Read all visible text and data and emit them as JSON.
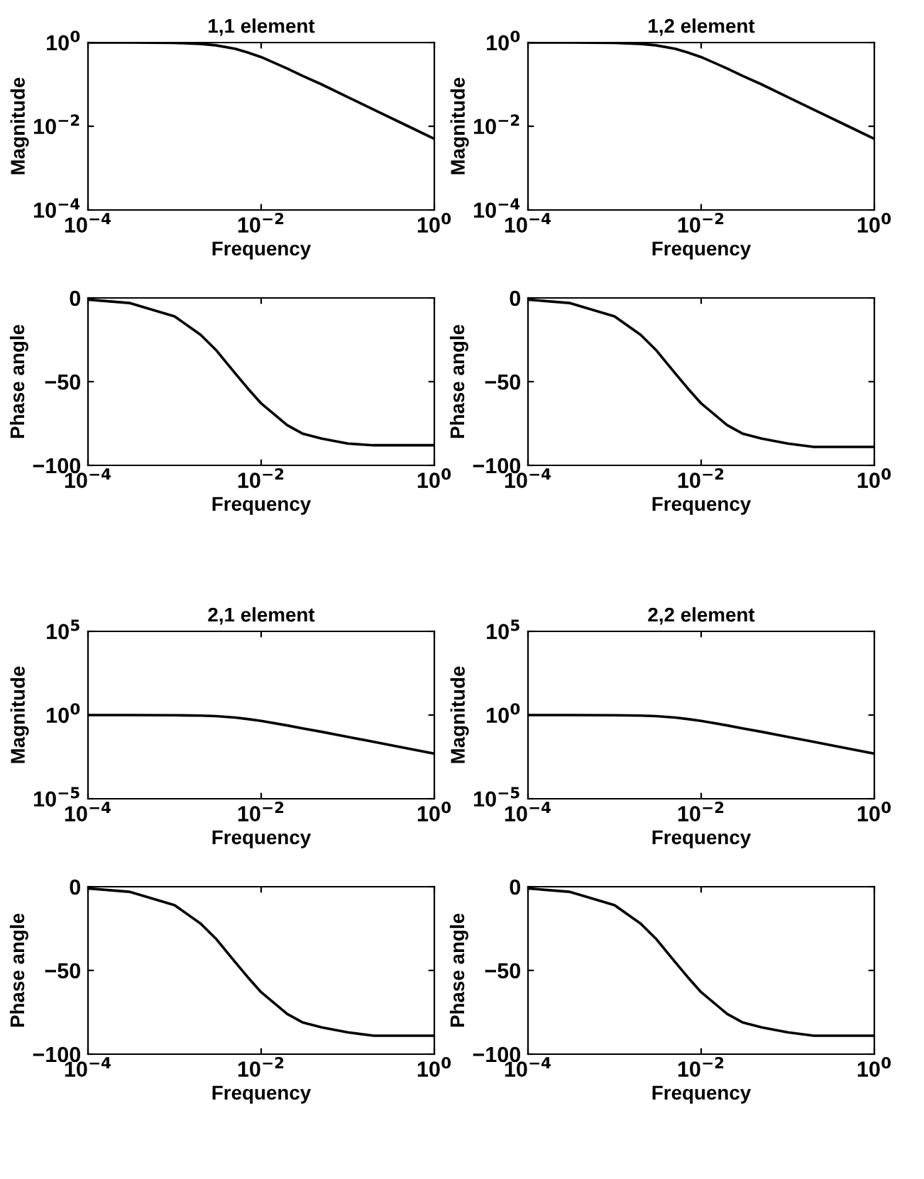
{
  "chart_data": [
    {
      "type": "line",
      "title": "1,1 element",
      "xlabel": "Frequency",
      "ylabel": "Magnitude",
      "log": "xy",
      "x": [
        0.0001,
        0.0003,
        0.001,
        0.002,
        0.003,
        0.005,
        0.007,
        0.01,
        0.02,
        0.03,
        0.05,
        0.1,
        0.2,
        0.5,
        1
      ],
      "series": [
        {
          "color": "#000000",
          "values": [
            1.0,
            1.0,
            0.98,
            0.93,
            0.86,
            0.71,
            0.58,
            0.45,
            0.24,
            0.16,
            0.1,
            0.05,
            0.025,
            0.01,
            0.005
          ]
        }
      ],
      "xlim": [
        0.0001,
        1
      ],
      "xticks": [
        {
          "value": 0.0001,
          "label": "10$^{−4}$"
        },
        {
          "value": 0.01,
          "label": "10$^{−2}$"
        },
        {
          "value": 1,
          "label": "10$^{0}$"
        }
      ],
      "ylim": [
        0.0001,
        1
      ],
      "yticks": [
        {
          "value": 0.0001,
          "label": "10$^{−4}$"
        },
        {
          "value": 0.01,
          "label": "10$^{−2}$"
        },
        {
          "value": 1,
          "label": "10$^{0}$"
        }
      ]
    },
    {
      "type": "line",
      "title": "1,2 element",
      "xlabel": "Frequency",
      "ylabel": "Magnitude",
      "log": "xy",
      "x": [
        0.0001,
        0.0003,
        0.001,
        0.002,
        0.003,
        0.005,
        0.007,
        0.01,
        0.02,
        0.03,
        0.05,
        0.1,
        0.2,
        0.5,
        1
      ],
      "series": [
        {
          "color": "#000000",
          "values": [
            1.0,
            1.0,
            0.98,
            0.93,
            0.86,
            0.71,
            0.58,
            0.45,
            0.24,
            0.16,
            0.1,
            0.05,
            0.025,
            0.01,
            0.005
          ]
        }
      ],
      "xlim": [
        0.0001,
        1
      ],
      "xticks": [
        {
          "value": 0.0001,
          "label": "10$^{−4}$"
        },
        {
          "value": 0.01,
          "label": "10$^{−2}$"
        },
        {
          "value": 1,
          "label": "10$^{0}$"
        }
      ],
      "ylim": [
        0.0001,
        1
      ],
      "yticks": [
        {
          "value": 0.0001,
          "label": "10$^{−4}$"
        },
        {
          "value": 0.01,
          "label": "10$^{−2}$"
        },
        {
          "value": 1,
          "label": "10$^{0}$"
        }
      ]
    },
    {
      "type": "line",
      "xlabel": "Frequency",
      "ylabel": "Phase angle",
      "log": "x",
      "x": [
        0.0001,
        0.0003,
        0.001,
        0.002,
        0.003,
        0.005,
        0.007,
        0.01,
        0.02,
        0.03,
        0.05,
        0.1,
        0.2,
        0.5,
        1
      ],
      "series": [
        {
          "color": "#000000",
          "values": [
            -1,
            -3,
            -11,
            -22,
            -31,
            -45,
            -54,
            -63,
            -76,
            -81,
            -84,
            -87,
            -88,
            -88,
            -88
          ]
        }
      ],
      "xlim": [
        0.0001,
        1
      ],
      "xticks": [
        {
          "value": 0.0001,
          "label": "10$^{−4}$"
        },
        {
          "value": 0.01,
          "label": "10$^{−2}$"
        },
        {
          "value": 1,
          "label": "10$^{0}$"
        }
      ],
      "ylim": [
        -100,
        0
      ],
      "yticks": [
        -100,
        -50,
        0
      ]
    },
    {
      "type": "line",
      "xlabel": "Frequency",
      "ylabel": "Phase angle",
      "log": "x",
      "x": [
        0.0001,
        0.0003,
        0.001,
        0.002,
        0.003,
        0.005,
        0.007,
        0.01,
        0.02,
        0.03,
        0.05,
        0.1,
        0.2,
        0.5,
        1
      ],
      "series": [
        {
          "color": "#000000",
          "values": [
            -1,
            -3,
            -11,
            -22,
            -31,
            -45,
            -54,
            -63,
            -76,
            -81,
            -84,
            -87,
            -89,
            -89,
            -89
          ]
        }
      ],
      "xlim": [
        0.0001,
        1
      ],
      "xticks": [
        {
          "value": 0.0001,
          "label": "10$^{−4}$"
        },
        {
          "value": 0.01,
          "label": "10$^{−2}$"
        },
        {
          "value": 1,
          "label": "10$^{0}$"
        }
      ],
      "ylim": [
        -100,
        0
      ],
      "yticks": [
        -100,
        -50,
        0
      ]
    },
    {
      "type": "line",
      "title": "2,1 element",
      "xlabel": "Frequency",
      "ylabel": "Magnitude",
      "log": "xy",
      "x": [
        0.0001,
        0.0003,
        0.001,
        0.002,
        0.003,
        0.005,
        0.007,
        0.01,
        0.02,
        0.03,
        0.05,
        0.1,
        0.2,
        0.5,
        1
      ],
      "series": [
        {
          "color": "#000000",
          "values": [
            1.0,
            1.0,
            0.98,
            0.93,
            0.86,
            0.71,
            0.58,
            0.45,
            0.24,
            0.16,
            0.1,
            0.05,
            0.025,
            0.01,
            0.005
          ]
        }
      ],
      "xlim": [
        0.0001,
        1
      ],
      "xticks": [
        {
          "value": 0.0001,
          "label": "10$^{−4}$"
        },
        {
          "value": 0.01,
          "label": "10$^{−2}$"
        },
        {
          "value": 1,
          "label": "10$^{0}$"
        }
      ],
      "ylim": [
        1e-05,
        100000
      ],
      "yticks": [
        {
          "value": 1e-05,
          "label": "10$^{−5}$"
        },
        {
          "value": 1,
          "label": "10$^{0}$"
        },
        {
          "value": 100000,
          "label": "10$^{5}$"
        }
      ]
    },
    {
      "type": "line",
      "title": "2,2 element",
      "xlabel": "Frequency",
      "ylabel": "Magnitude",
      "log": "xy",
      "x": [
        0.0001,
        0.0003,
        0.001,
        0.002,
        0.003,
        0.005,
        0.007,
        0.01,
        0.02,
        0.03,
        0.05,
        0.1,
        0.2,
        0.5,
        1
      ],
      "series": [
        {
          "color": "#000000",
          "values": [
            1.0,
            1.0,
            0.98,
            0.93,
            0.86,
            0.71,
            0.58,
            0.45,
            0.24,
            0.16,
            0.1,
            0.05,
            0.025,
            0.01,
            0.005
          ]
        }
      ],
      "xlim": [
        0.0001,
        1
      ],
      "xticks": [
        {
          "value": 0.0001,
          "label": "10$^{−4}$"
        },
        {
          "value": 0.01,
          "label": "10$^{−2}$"
        },
        {
          "value": 1,
          "label": "10$^{0}$"
        }
      ],
      "ylim": [
        1e-05,
        100000
      ],
      "yticks": [
        {
          "value": 1e-05,
          "label": "10$^{−5}$"
        },
        {
          "value": 1,
          "label": "10$^{0}$"
        },
        {
          "value": 100000,
          "label": "10$^{5}$"
        }
      ]
    },
    {
      "type": "line",
      "xlabel": "Frequency",
      "ylabel": "Phase angle",
      "log": "x",
      "x": [
        0.0001,
        0.0003,
        0.001,
        0.002,
        0.003,
        0.005,
        0.007,
        0.01,
        0.02,
        0.03,
        0.05,
        0.1,
        0.2,
        0.5,
        1
      ],
      "series": [
        {
          "color": "#000000",
          "values": [
            -1,
            -3,
            -11,
            -22,
            -31,
            -45,
            -54,
            -63,
            -76,
            -81,
            -84,
            -87,
            -89,
            -89,
            -89
          ]
        }
      ],
      "xlim": [
        0.0001,
        1
      ],
      "xticks": [
        {
          "value": 0.0001,
          "label": "10$^{−4}$"
        },
        {
          "value": 0.01,
          "label": "10$^{−2}$"
        },
        {
          "value": 1,
          "label": "10$^{0}$"
        }
      ],
      "ylim": [
        -100,
        0
      ],
      "yticks": [
        -100,
        -50,
        0
      ]
    },
    {
      "type": "line",
      "xlabel": "Frequency",
      "ylabel": "Phase angle",
      "log": "x",
      "x": [
        0.0001,
        0.0003,
        0.001,
        0.002,
        0.003,
        0.005,
        0.007,
        0.01,
        0.02,
        0.03,
        0.05,
        0.1,
        0.2,
        0.5,
        1
      ],
      "series": [
        {
          "color": "#000000",
          "values": [
            -1,
            -3,
            -11,
            -22,
            -31,
            -45,
            -54,
            -63,
            -76,
            -81,
            -84,
            -87,
            -89,
            -89,
            -89
          ]
        }
      ],
      "xlim": [
        0.0001,
        1
      ],
      "xticks": [
        {
          "value": 0.0001,
          "label": "10$^{−4}$"
        },
        {
          "value": 0.01,
          "label": "10$^{−2}$"
        },
        {
          "value": 1,
          "label": "10$^{0}$"
        }
      ],
      "ylim": [
        -100,
        0
      ],
      "yticks": [
        -100,
        -50,
        0
      ]
    }
  ]
}
